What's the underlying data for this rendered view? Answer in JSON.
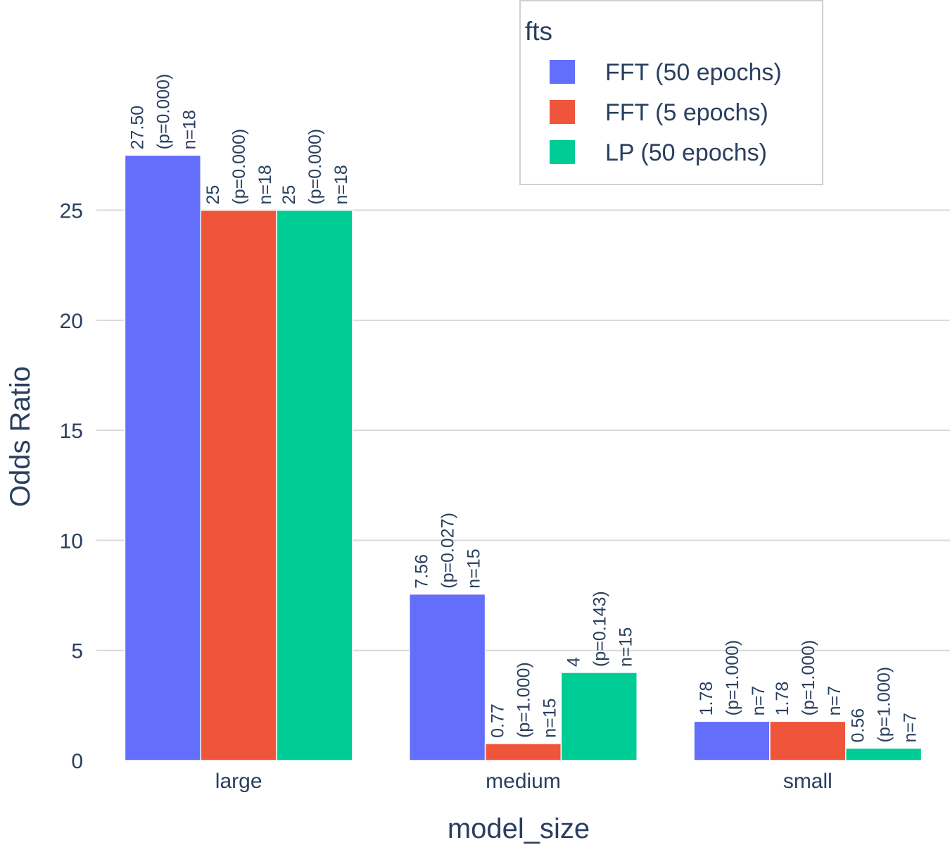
{
  "chart_data": {
    "type": "bar",
    "barmode": "group",
    "categories": [
      "large",
      "medium",
      "small"
    ],
    "series": [
      {
        "name": "FFT (50 epochs)",
        "color": "#636efa",
        "values": [
          27.5,
          7.56,
          1.78
        ],
        "labels": [
          [
            "27.50",
            "(p=0.000)",
            "n=18"
          ],
          [
            "7.56",
            "(p=0.027)",
            "n=15"
          ],
          [
            "1.78",
            "(p=1.000)",
            "n=7"
          ]
        ]
      },
      {
        "name": "FFT (5 epochs)",
        "color": "#ef553b",
        "values": [
          25,
          0.77,
          1.78
        ],
        "labels": [
          [
            "25",
            "(p=0.000)",
            "n=18"
          ],
          [
            "0.77",
            "(p=1.000)",
            "n=15"
          ],
          [
            "1.78",
            "(p=1.000)",
            "n=7"
          ]
        ]
      },
      {
        "name": "LP (50 epochs)",
        "color": "#00cc96",
        "values": [
          25,
          4,
          0.56
        ],
        "labels": [
          [
            "25",
            "(p=0.000)",
            "n=18"
          ],
          [
            "4",
            "(p=0.143)",
            "n=15"
          ],
          [
            "0.56",
            "(p=1.000)",
            "n=7"
          ]
        ]
      }
    ],
    "xlabel": "model_size",
    "ylabel": "Odds Ratio",
    "ylim": [
      0,
      28.6
    ],
    "yticks": [
      0,
      5,
      10,
      15,
      20,
      25
    ],
    "grid": true,
    "legend": {
      "title": "fts",
      "position": "top-right"
    }
  }
}
